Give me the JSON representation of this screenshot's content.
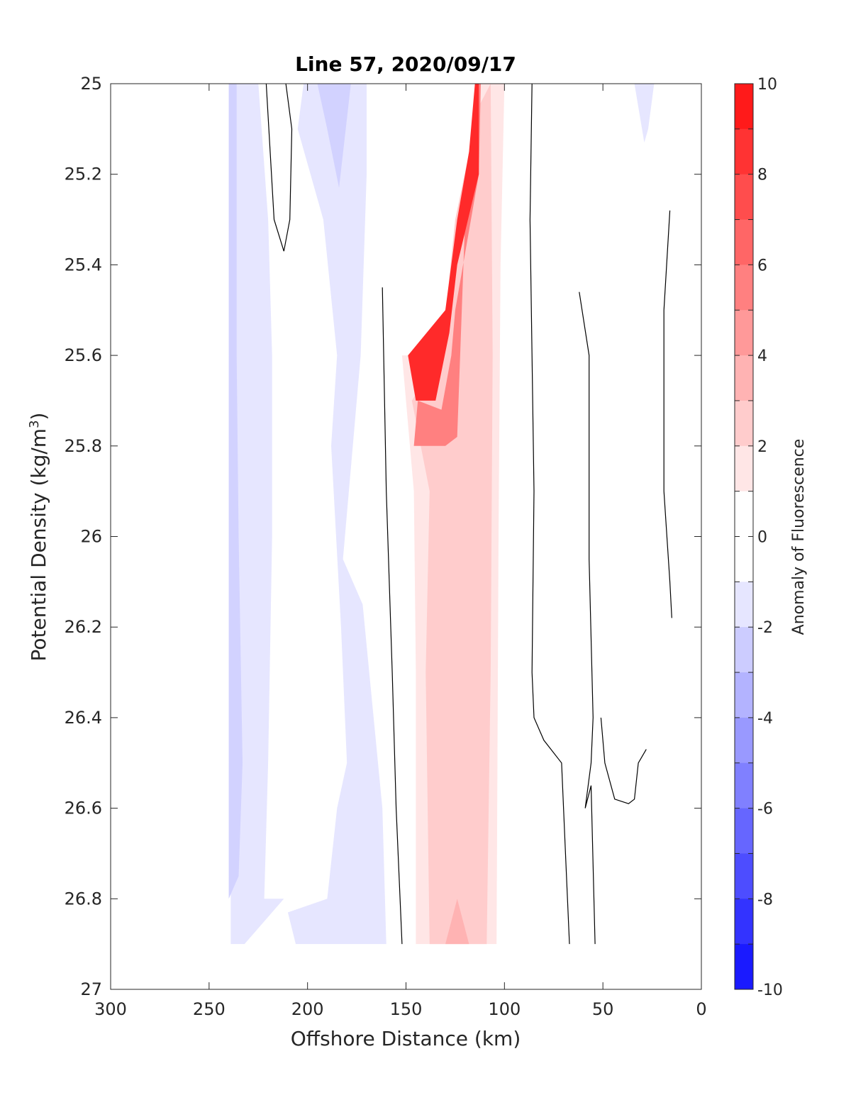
{
  "chart_data": {
    "type": "contour",
    "title": "Line 57, 2020/09/17",
    "xlabel": "Offshore Distance (km)",
    "ylabel": {
      "main": "Potential Density (kg/m",
      "sup": "3",
      "close": ")"
    },
    "xlim": [
      300,
      0
    ],
    "ylim": [
      25,
      27
    ],
    "x_reversed": true,
    "y_reversed": true,
    "x_ticks": [
      "300",
      "250",
      "200",
      "150",
      "100",
      "50",
      "0"
    ],
    "y_ticks": [
      "25",
      "25.2",
      "25.4",
      "25.6",
      "25.8",
      "26",
      "26.2",
      "26.4",
      "26.6",
      "26.8",
      "27"
    ],
    "colorbar": {
      "label": "Anomaly of Fluorescence",
      "range": [
        -10,
        10
      ],
      "levels": [
        -10,
        -9,
        -8,
        -7,
        -6,
        -5,
        -4,
        -3,
        -2,
        -1,
        1,
        2,
        3,
        4,
        5,
        6,
        7,
        8,
        9,
        10
      ],
      "tick_labels": [
        "10",
        "8",
        "6",
        "4",
        "2",
        "0",
        "-2",
        "-4",
        "-6",
        "-8",
        "-10"
      ],
      "colors_top_to_bottom": [
        "#ff1a1a",
        "#ff3333",
        "#ff4d4d",
        "#ff6666",
        "#ff8080",
        "#ff9999",
        "#ffb3b3",
        "#ffcccc",
        "#ffe6e6",
        "#ffffff",
        "#ffffff",
        "#e6e6ff",
        "#ccccff",
        "#b3b3ff",
        "#9999ff",
        "#8080ff",
        "#6666ff",
        "#4d4dff",
        "#3333ff",
        "#1a1aff"
      ]
    },
    "fill_regions": [
      {
        "level": -1,
        "color": "#e6e6ff",
        "points": [
          [
            239,
            25
          ],
          [
            225,
            25
          ],
          [
            220,
            25.3
          ],
          [
            218,
            25.6
          ],
          [
            218,
            26
          ],
          [
            220,
            26.5
          ],
          [
            222,
            26.8
          ],
          [
            212,
            26.8
          ],
          [
            232,
            26.9
          ],
          [
            239,
            26.9
          ]
        ]
      },
      {
        "level": -2,
        "color": "#d2d2ff",
        "points": [
          [
            240,
            25
          ],
          [
            236,
            25
          ],
          [
            236,
            25.6
          ],
          [
            235,
            26
          ],
          [
            233,
            26.5
          ],
          [
            235,
            26.75
          ],
          [
            240,
            26.8
          ]
        ]
      },
      {
        "level": -1,
        "color": "#e6e6ff",
        "points": [
          [
            202,
            25
          ],
          [
            170,
            25
          ],
          [
            170,
            25.2
          ],
          [
            173,
            25.6
          ],
          [
            177,
            25.8
          ],
          [
            182,
            26.05
          ],
          [
            172,
            26.15
          ],
          [
            162,
            26.6
          ],
          [
            160,
            26.9
          ],
          [
            206,
            26.9
          ],
          [
            210,
            26.83
          ],
          [
            190,
            26.8
          ],
          [
            185,
            26.6
          ],
          [
            180,
            26.5
          ],
          [
            183,
            26.2
          ],
          [
            188,
            25.8
          ],
          [
            185,
            25.6
          ],
          [
            192,
            25.3
          ],
          [
            205,
            25.1
          ]
        ]
      },
      {
        "level": -2,
        "color": "#d2d2ff",
        "points": [
          [
            195,
            25
          ],
          [
            178,
            25
          ],
          [
            184,
            25.23
          ],
          [
            190,
            25.1
          ]
        ]
      },
      {
        "level": -1,
        "color": "#e6e6ff",
        "points": [
          [
            34,
            25
          ],
          [
            24,
            25
          ],
          [
            27,
            25.1
          ],
          [
            29,
            25.13
          ]
        ]
      },
      {
        "level": 1,
        "color": "#ffe6e6",
        "points": [
          [
            112,
            25
          ],
          [
            100,
            25
          ],
          [
            102,
            25.4
          ],
          [
            103,
            26
          ],
          [
            104,
            26.9
          ],
          [
            145,
            26.9
          ],
          [
            145,
            26.3
          ],
          [
            146,
            25.9
          ],
          [
            152,
            25.6
          ],
          [
            140,
            25.6
          ],
          [
            130,
            25.5
          ],
          [
            115,
            25.2
          ]
        ]
      },
      {
        "level": 2,
        "color": "#ffcccc",
        "points": [
          [
            107,
            25
          ],
          [
            106,
            25.6
          ],
          [
            107,
            26.3
          ],
          [
            109,
            26.9
          ],
          [
            138,
            26.9
          ],
          [
            140,
            26.3
          ],
          [
            138,
            25.9
          ],
          [
            147,
            25.7
          ],
          [
            132,
            25.6
          ],
          [
            125,
            25.3
          ],
          [
            113,
            25.05
          ]
        ]
      },
      {
        "level": 3,
        "color": "#ffb3b3",
        "points": [
          [
            124,
            26.8
          ],
          [
            118,
            26.9
          ],
          [
            130,
            26.9
          ]
        ]
      },
      {
        "level": 4,
        "color": "#ff8080",
        "points": [
          [
            114,
            25
          ],
          [
            112,
            25
          ],
          [
            113,
            25.2
          ],
          [
            125,
            25.5
          ],
          [
            127,
            25.6
          ],
          [
            132,
            25.72
          ],
          [
            144,
            25.7
          ],
          [
            146,
            25.8
          ],
          [
            130,
            25.8
          ],
          [
            124,
            25.78
          ],
          [
            120,
            25.3
          ]
        ]
      },
      {
        "level": 7,
        "color": "#ff2a2a",
        "points": [
          [
            115,
            25
          ],
          [
            113,
            25
          ],
          [
            113,
            25.2
          ],
          [
            124,
            25.4
          ],
          [
            128,
            25.55
          ],
          [
            135,
            25.7
          ],
          [
            145,
            25.7
          ],
          [
            149,
            25.6
          ],
          [
            130,
            25.5
          ],
          [
            124,
            25.3
          ],
          [
            118,
            25.15
          ]
        ]
      }
    ],
    "contour_lines": [
      [
        [
          221,
          25
        ],
        [
          217,
          25.3
        ],
        [
          212,
          25.37
        ],
        [
          209,
          25.3
        ],
        [
          208,
          25.1
        ],
        [
          211,
          25
        ]
      ],
      [
        [
          162,
          25.45
        ],
        [
          160,
          25.9
        ],
        [
          157,
          26.3
        ],
        [
          155,
          26.6
        ],
        [
          152,
          26.9
        ]
      ],
      [
        [
          86,
          25
        ],
        [
          87,
          25.3
        ],
        [
          85,
          25.9
        ],
        [
          86,
          26.3
        ],
        [
          85,
          26.4
        ],
        [
          80,
          26.45
        ],
        [
          71,
          26.5
        ],
        [
          69,
          26.7
        ],
        [
          67,
          26.9
        ]
      ],
      [
        [
          62,
          25.46
        ],
        [
          57,
          25.6
        ],
        [
          57,
          26.05
        ],
        [
          55,
          26.4
        ],
        [
          56,
          26.5
        ],
        [
          59,
          26.6
        ],
        [
          56,
          26.55
        ],
        [
          54,
          26.9
        ]
      ],
      [
        [
          16,
          25.28
        ],
        [
          19,
          25.5
        ],
        [
          19,
          25.9
        ],
        [
          16,
          26.1
        ],
        [
          15,
          26.18
        ]
      ],
      [
        [
          28,
          26.47
        ],
        [
          32,
          26.5
        ],
        [
          34,
          26.58
        ],
        [
          37,
          26.59
        ],
        [
          44,
          26.58
        ],
        [
          49,
          26.5
        ],
        [
          51,
          26.4
        ]
      ]
    ]
  }
}
